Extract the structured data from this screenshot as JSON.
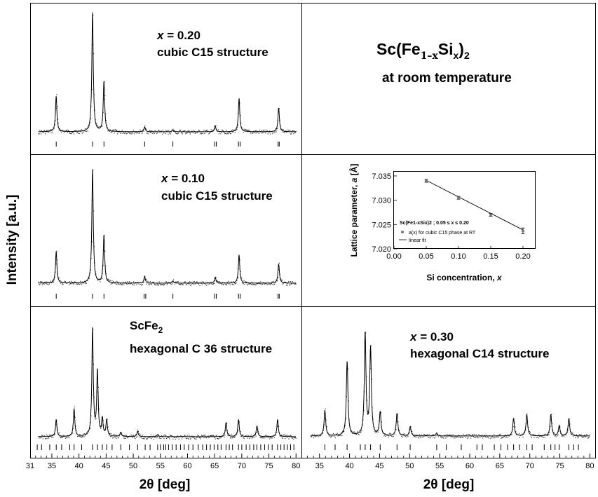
{
  "figure": {
    "ylabel": "Intensity [a.u.]",
    "xlabel_left": "2θ [deg]",
    "xlabel_right": "2θ [deg]",
    "title_main": "Sc(Fe",
    "title_sub1": "1–x",
    "title_mid": "Si",
    "title_sub2": "x",
    "title_close": ")",
    "title_sub3": "2",
    "title_line2": "at room temperature"
  },
  "chart_data": [
    {
      "type": "line",
      "panel": "top-left",
      "label_var": "x",
      "label_value": " = 0.20",
      "label_structure": "cubic C15 structure",
      "xlim": [
        31,
        81
      ],
      "peaks": [
        [
          35.8,
          0.3
        ],
        [
          42.5,
          1.0
        ],
        [
          44.6,
          0.42
        ],
        [
          52.1,
          0.04
        ],
        [
          57.3,
          0.015
        ],
        [
          65.1,
          0.05
        ],
        [
          69.5,
          0.28
        ],
        [
          76.8,
          0.2
        ]
      ],
      "ticks": [
        35.8,
        42.5,
        44.6,
        52.1,
        57.3,
        65.0,
        65.3,
        69.4,
        69.7,
        76.7,
        76.9
      ]
    },
    {
      "type": "line",
      "panel": "middle-left",
      "label_var": "x",
      "label_value": " = 0.10",
      "label_structure": "cubic C15 structure",
      "xlim": [
        31,
        81
      ],
      "peaks": [
        [
          35.8,
          0.28
        ],
        [
          42.5,
          1.0
        ],
        [
          44.6,
          0.42
        ],
        [
          52.1,
          0.06
        ],
        [
          57.3,
          0.02
        ],
        [
          65.1,
          0.05
        ],
        [
          69.5,
          0.25
        ],
        [
          76.8,
          0.17
        ]
      ],
      "ticks": [
        35.8,
        42.5,
        44.6,
        52.0,
        52.3,
        57.3,
        65.0,
        65.3,
        69.4,
        69.7,
        76.7,
        76.9
      ]
    },
    {
      "type": "line",
      "panel": "bottom-left",
      "label_name": "ScFe",
      "label_sub": "2",
      "label_structure": "hexagonal C 36 structure",
      "xlim": [
        31,
        81
      ],
      "xticks": [
        31,
        35,
        40,
        45,
        50,
        55,
        60,
        65,
        70,
        75,
        80
      ],
      "peaks": [
        [
          35.8,
          0.16
        ],
        [
          39.1,
          0.26
        ],
        [
          42.5,
          1.0
        ],
        [
          43.4,
          0.6
        ],
        [
          44.3,
          0.16
        ],
        [
          45.1,
          0.15
        ],
        [
          47.7,
          0.04
        ],
        [
          50.8,
          0.05
        ],
        [
          54.5,
          0.02
        ],
        [
          67.1,
          0.13
        ],
        [
          69.4,
          0.16
        ],
        [
          72.8,
          0.1
        ],
        [
          76.6,
          0.16
        ]
      ],
      "ticks": [
        32.3,
        33.1,
        34.6,
        35.8,
        36.8,
        38.3,
        39.1,
        40.5,
        42.5,
        43.4,
        44.3,
        45.1,
        46.1,
        47.7,
        49.3,
        50.8,
        52.2,
        53.1,
        54.5,
        55.0,
        55.6,
        56.0,
        56.5,
        57.2,
        57.9,
        58.7,
        59.4,
        60.2,
        61.0,
        62.0,
        62.8,
        63.5,
        64.2,
        64.9,
        65.6,
        66.2,
        67.1,
        67.7,
        68.3,
        69.4,
        70.0,
        70.8,
        71.5,
        72.2,
        72.8,
        73.5,
        74.2,
        74.9,
        75.6,
        76.6,
        77.2,
        77.8,
        78.4,
        79.0,
        79.6
      ]
    },
    {
      "type": "line",
      "panel": "bottom-right",
      "label_var": "x",
      "label_value": " = 0.30",
      "label_structure": "hexagonal C14 structure",
      "xlim": [
        32,
        81
      ],
      "xticks": [
        35,
        40,
        45,
        50,
        55,
        60,
        65,
        70,
        75,
        80
      ],
      "peaks": [
        [
          35.9,
          0.25
        ],
        [
          39.6,
          0.73
        ],
        [
          42.6,
          1.0
        ],
        [
          43.5,
          0.85
        ],
        [
          45.1,
          0.23
        ],
        [
          47.9,
          0.22
        ],
        [
          50.1,
          0.09
        ],
        [
          54.5,
          0.03
        ],
        [
          67.3,
          0.17
        ],
        [
          69.5,
          0.21
        ],
        [
          73.5,
          0.21
        ],
        [
          74.9,
          0.1
        ],
        [
          76.5,
          0.17
        ]
      ],
      "ticks": [
        35.9,
        37.6,
        39.6,
        41.8,
        42.6,
        43.5,
        45.1,
        47.9,
        50.1,
        54.5,
        56.1,
        58.6,
        61.2,
        62.1,
        64.1,
        65.2,
        66.3,
        67.3,
        68.3,
        69.5,
        70.4,
        72.4,
        73.5,
        74.2,
        74.9,
        76.5,
        77.3,
        78.1
      ]
    },
    {
      "type": "scatter",
      "panel": "inset",
      "xlabel_prefix": "Si concentration, ",
      "xlabel_var": "x",
      "ylabel_prefix": "Lattice parameter, ",
      "ylabel_var": "a",
      "ylabel_unit": " [Å]",
      "xlim": [
        0.0,
        0.2
      ],
      "ylim": [
        7.02,
        7.035
      ],
      "xticks": [
        "0.00",
        "0.05",
        "0.10",
        "0.15",
        "0.20"
      ],
      "yticks": [
        "7.020",
        "7.025",
        "7.030",
        "7.035"
      ],
      "x": [
        0.05,
        0.1,
        0.15,
        0.2
      ],
      "y": [
        7.034,
        7.0305,
        7.027,
        7.0237
      ],
      "yerr": [
        0.0003,
        0.0002,
        0.0002,
        0.0006
      ],
      "fit": [
        [
          0.05,
          7.0341
        ],
        [
          0.2,
          7.0239
        ]
      ],
      "legend_title": "Sc(Fe1-xSix)2 ; 0.05 ≤ x ≤ 0.20",
      "legend_series": "a(x) for cubic C15 phase at RT",
      "legend_fit": "linear fit"
    }
  ]
}
